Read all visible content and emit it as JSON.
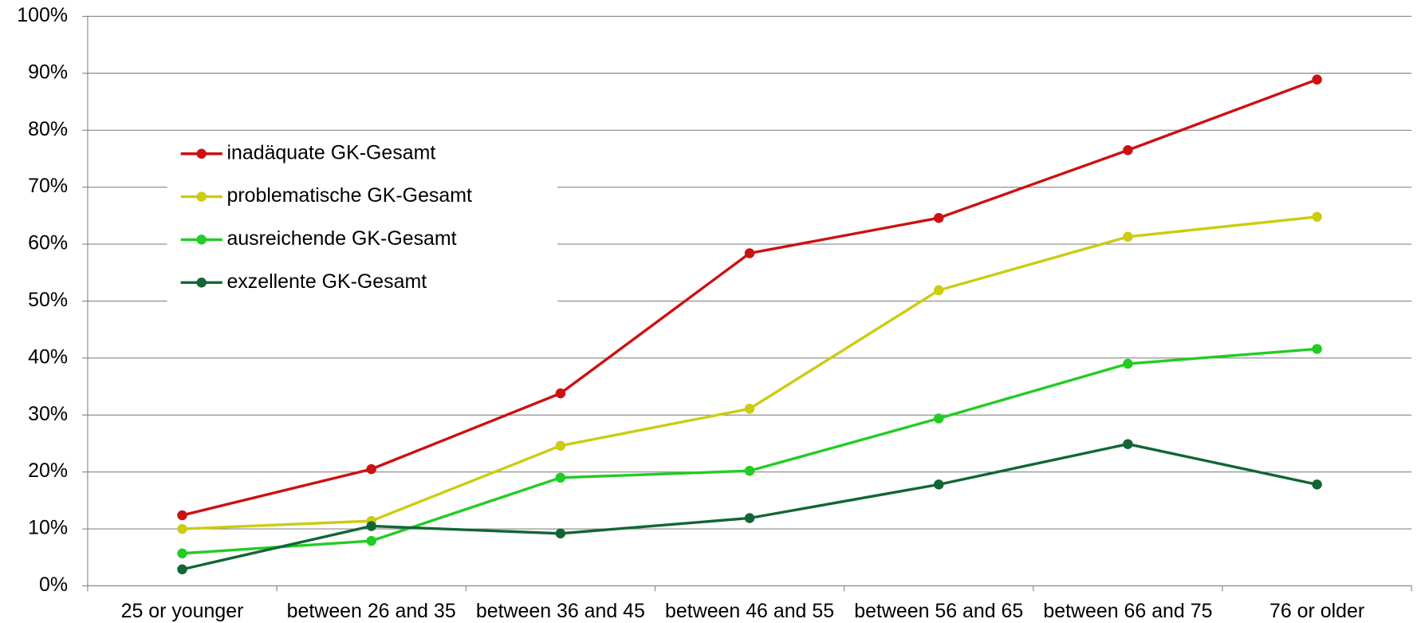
{
  "chart_data": {
    "type": "line",
    "categories": [
      "25 or younger",
      "between 26 and 35",
      "between 36 and 45",
      "between 46 and 55",
      "between 56 and 65",
      "between 66 and 75",
      "76 or older"
    ],
    "series": [
      {
        "name": "inadäquate GK-Gesamt",
        "color": "#cc1111",
        "values": [
          12.4,
          20.5,
          33.8,
          58.4,
          64.6,
          76.5,
          88.9
        ]
      },
      {
        "name": "problematische GK-Gesamt",
        "color": "#cccc11",
        "values": [
          10.0,
          11.4,
          24.6,
          31.1,
          51.9,
          61.3,
          64.8
        ]
      },
      {
        "name": "ausreichende GK-Gesamt",
        "color": "#22cc22",
        "values": [
          5.7,
          7.9,
          19.0,
          20.2,
          29.4,
          39.0,
          41.6
        ]
      },
      {
        "name": "exzellente GK-Gesamt",
        "color": "#116633",
        "values": [
          2.9,
          10.5,
          9.2,
          11.9,
          17.8,
          24.9,
          17.8
        ]
      }
    ],
    "ylim": [
      0,
      100
    ],
    "yticks": [
      {
        "value": 0,
        "label": "0%"
      },
      {
        "value": 10,
        "label": "10%"
      },
      {
        "value": 20,
        "label": "20%"
      },
      {
        "value": 30,
        "label": "30%"
      },
      {
        "value": 40,
        "label": "40%"
      },
      {
        "value": 50,
        "label": "50%"
      },
      {
        "value": 60,
        "label": "60%"
      },
      {
        "value": 70,
        "label": "70%"
      },
      {
        "value": 80,
        "label": "80%"
      },
      {
        "value": 90,
        "label": "90%"
      },
      {
        "value": 100,
        "label": "100%"
      }
    ],
    "grid": true,
    "legend": "upper left"
  }
}
